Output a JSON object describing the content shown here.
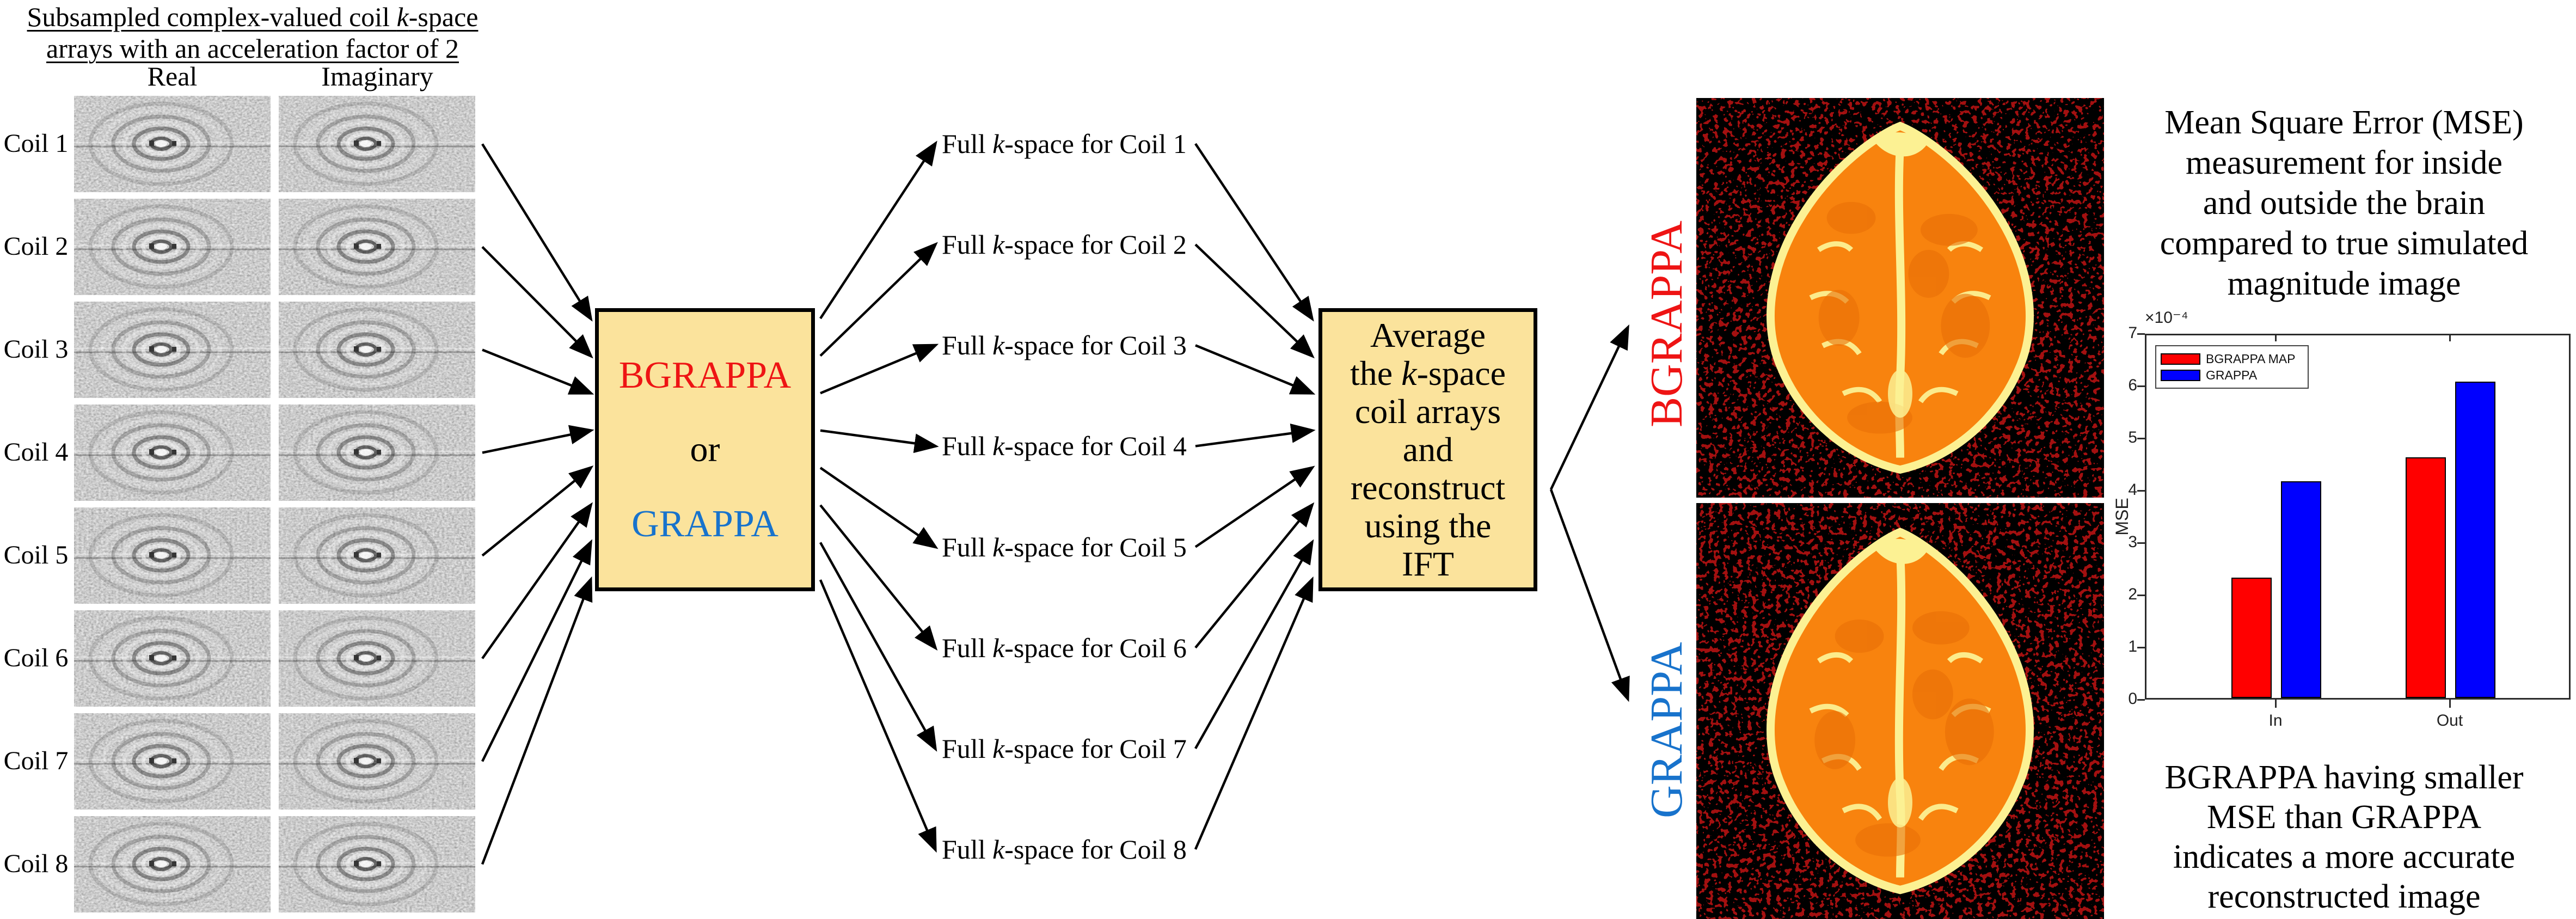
{
  "colors": {
    "accent_red": "#ee1414",
    "accent_blue": "#1873cc",
    "box_fill": "#fbe39c",
    "bar_red": "#ff0000",
    "bar_blue": "#0000ff",
    "noise_red": "#a31010",
    "brain_orange": "#f8830e",
    "brain_yellow": "#fcf193"
  },
  "left_panel": {
    "title_lines": [
      "Subsampled complex-valued coil k-space",
      "arrays with an acceleration factor of 2"
    ],
    "column_headers": [
      "Real",
      "Imaginary"
    ],
    "coil_labels": [
      "Coil 1",
      "Coil 2",
      "Coil 3",
      "Coil 4",
      "Coil 5",
      "Coil 6",
      "Coil 7",
      "Coil 8"
    ]
  },
  "recon_box": {
    "top": "BGRAPPA",
    "middle": "or",
    "bottom": "GRAPPA"
  },
  "kspace_labels": [
    "Full k-space for Coil 1",
    "Full k-space for Coil 2",
    "Full k-space for Coil 3",
    "Full k-space for Coil 4",
    "Full k-space for Coil 5",
    "Full k-space for Coil 6",
    "Full k-space for Coil 7",
    "Full k-space for Coil 8"
  ],
  "average_box_lines": [
    "Average",
    "the k-space",
    "coil arrays",
    "and",
    "reconstruct",
    "using the",
    "IFT"
  ],
  "output_labels": {
    "top": "BGRAPPA",
    "bottom": "GRAPPA"
  },
  "right_panel": {
    "top_text_lines": [
      "Mean Square Error (MSE)",
      "measurement for inside",
      "and outside the brain",
      "compared to true simulated",
      "magnitude image"
    ],
    "bottom_text_lines": [
      "BGRAPPA having smaller",
      "MSE than GRAPPA",
      "indicates a more accurate",
      "reconstructed image"
    ]
  },
  "chart_data": {
    "type": "bar",
    "title": "",
    "categories": [
      "In",
      "Out"
    ],
    "series": [
      {
        "name": "BGRAPPA MAP",
        "color": "#ff0000",
        "values": [
          2.3,
          4.6
        ]
      },
      {
        "name": "GRAPPA",
        "color": "#0000ff",
        "values": [
          4.15,
          6.05
        ]
      }
    ],
    "xlabel": "",
    "ylabel": "MSE",
    "scale_label": "×10⁻⁴",
    "ylim": [
      0,
      7
    ],
    "yticks": [
      0,
      1,
      2,
      3,
      4,
      5,
      6,
      7
    ],
    "grid": false,
    "legend_position": "top-left"
  }
}
